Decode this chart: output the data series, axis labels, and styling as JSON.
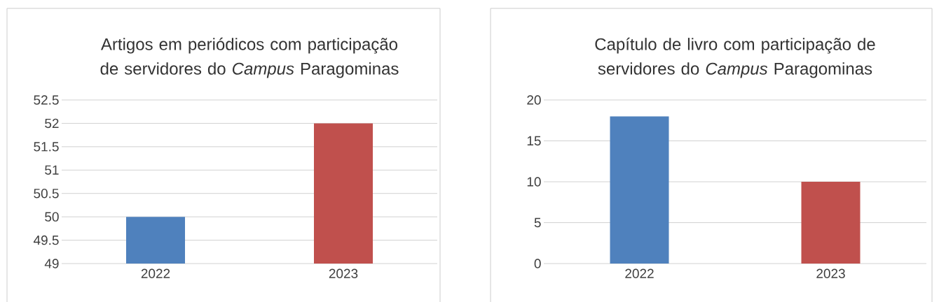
{
  "chart_data": [
    {
      "type": "bar",
      "title": "Artigos em periódicos com participação de servidores do *Campus* Paragominas",
      "categories": [
        "2022",
        "2023"
      ],
      "values": [
        50,
        52
      ],
      "colors": [
        "#4f81bd",
        "#c0504d"
      ],
      "ylim": [
        49,
        52.5
      ],
      "yticks": [
        49,
        49.5,
        50,
        50.5,
        51,
        51.5,
        52,
        52.5
      ],
      "grid": "y"
    },
    {
      "type": "bar",
      "title": "Capítulo de livro com participação de servidores do *Campus* Paragominas",
      "categories": [
        "2022",
        "2023"
      ],
      "values": [
        18,
        10
      ],
      "colors": [
        "#4f81bd",
        "#c0504d"
      ],
      "ylim": [
        0,
        20
      ],
      "yticks": [
        0,
        5,
        10,
        15,
        20
      ],
      "grid": "y"
    }
  ]
}
